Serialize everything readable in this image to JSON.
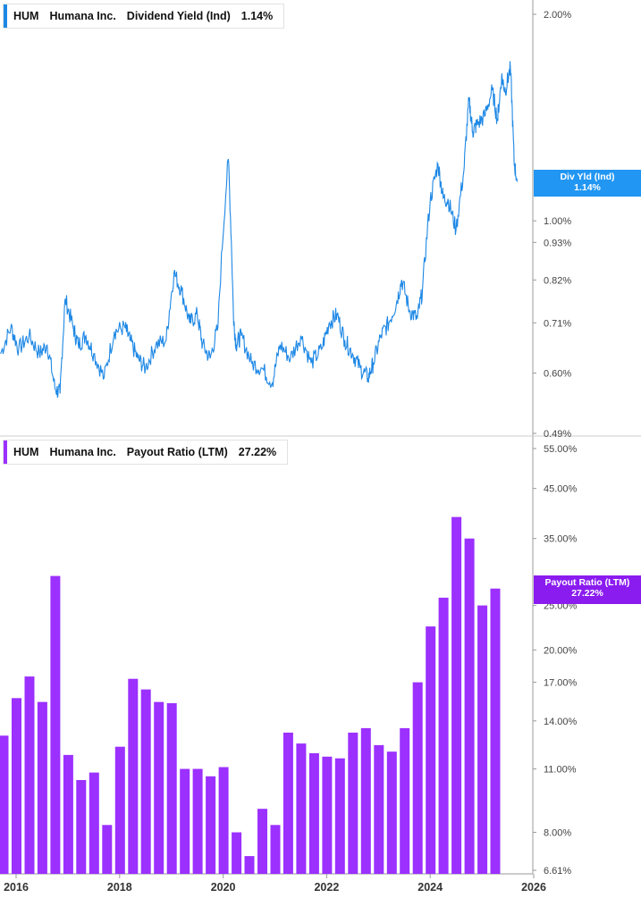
{
  "top_legend": {
    "ticker": "HUM",
    "company": "Humana Inc.",
    "metric": "Dividend Yield (Ind)",
    "value": "1.14%"
  },
  "top_flag": {
    "label": "Div Yld (Ind)",
    "value": "1.14%"
  },
  "bottom_legend": {
    "ticker": "HUM",
    "company": "Humana Inc.",
    "metric": "Payout Ratio (LTM)",
    "value": "27.22%"
  },
  "bottom_flag": {
    "label": "Payout Ratio (LTM)",
    "value": "27.22%"
  },
  "colors": {
    "line": "#1e88e5",
    "bars": "#9b30ff",
    "flag_top": "#2196f3",
    "flag_bottom": "#8a1cf0",
    "axis": "#999999"
  },
  "x_axis_labels": [
    "2016",
    "2018",
    "2020",
    "2022",
    "2024",
    "2026"
  ],
  "chart_data": [
    {
      "type": "line",
      "y_scale": "log",
      "ylim": [
        0.49,
        2.0
      ],
      "y_tick_labels": [
        "2.00%",
        "1.00%",
        "0.93%",
        "0.82%",
        "0.71%",
        "0.60%",
        "0.49%"
      ],
      "y_tick_values": [
        2.0,
        1.0,
        0.93,
        0.82,
        0.71,
        0.6,
        0.49
      ],
      "x_range": [
        2015.7,
        2026.0
      ],
      "series": [
        {
          "values_x": [
            2015.7,
            2015.9,
            2016.05,
            2016.25,
            2016.45,
            2016.6,
            2016.75,
            2016.85,
            2016.95,
            2017.1,
            2017.2,
            2017.35,
            2017.5,
            2017.7,
            2017.9,
            2018.1,
            2018.2,
            2018.35,
            2018.5,
            2018.7,
            2018.9,
            2019.05,
            2019.2,
            2019.35,
            2019.5,
            2019.6,
            2019.75,
            2019.9,
            2020.1,
            2020.2,
            2020.25,
            2020.35,
            2020.55,
            2020.75,
            2020.95,
            2021.1,
            2021.3,
            2021.5,
            2021.7,
            2021.9,
            2022.05,
            2022.2,
            2022.35,
            2022.5,
            2022.65,
            2022.8,
            2022.9,
            2023.05,
            2023.2,
            2023.35,
            2023.45,
            2023.6,
            2023.75,
            2023.85,
            2024.0,
            2024.15,
            2024.25,
            2024.35,
            2024.5,
            2024.65,
            2024.75,
            2024.82,
            2024.9,
            2025.05,
            2025.2,
            2025.3,
            2025.38,
            2025.45,
            2025.55,
            2025.62,
            2025.68
          ],
          "values": [
            0.64,
            0.7,
            0.65,
            0.68,
            0.64,
            0.66,
            0.57,
            0.56,
            0.77,
            0.7,
            0.66,
            0.68,
            0.64,
            0.59,
            0.69,
            0.7,
            0.67,
            0.63,
            0.61,
            0.66,
            0.67,
            0.84,
            0.79,
            0.71,
            0.73,
            0.66,
            0.63,
            0.7,
            1.23,
            0.72,
            0.66,
            0.68,
            0.62,
            0.61,
            0.58,
            0.66,
            0.63,
            0.68,
            0.62,
            0.65,
            0.71,
            0.73,
            0.67,
            0.64,
            0.61,
            0.59,
            0.62,
            0.68,
            0.71,
            0.76,
            0.82,
            0.74,
            0.72,
            0.79,
            1.07,
            1.21,
            1.08,
            1.07,
            0.97,
            1.18,
            1.5,
            1.35,
            1.38,
            1.42,
            1.55,
            1.4,
            1.62,
            1.55,
            1.67,
            1.22,
            1.14
          ]
        }
      ]
    },
    {
      "type": "bar",
      "y_scale": "log",
      "ylim": [
        6.61,
        55.0
      ],
      "y_tick_labels": [
        "55.00%",
        "45.00%",
        "35.00%",
        "25.00%",
        "20.00%",
        "17.00%",
        "14.00%",
        "11.00%",
        "8.00%",
        "6.61%"
      ],
      "y_tick_values": [
        55,
        45,
        35,
        25,
        20,
        17,
        14,
        11,
        8,
        6.61
      ],
      "x": [
        2015.75,
        2016.0,
        2016.25,
        2016.5,
        2016.75,
        2017.0,
        2017.25,
        2017.5,
        2017.75,
        2018.0,
        2018.25,
        2018.5,
        2018.75,
        2019.0,
        2019.25,
        2019.5,
        2019.75,
        2020.0,
        2020.25,
        2020.5,
        2020.75,
        2021.0,
        2021.25,
        2021.5,
        2021.75,
        2022.0,
        2022.25,
        2022.5,
        2022.75,
        2023.0,
        2023.25,
        2023.5,
        2023.75,
        2024.0,
        2024.25,
        2024.5,
        2024.75,
        2025.0,
        2025.25,
        2025.5
      ],
      "values": [
        12.5,
        13.0,
        15.7,
        17.5,
        15.4,
        29.0,
        11.8,
        10.4,
        10.8,
        8.3,
        12.3,
        17.3,
        16.4,
        15.4,
        15.3,
        11.0,
        11.0,
        10.6,
        11.1,
        8.0,
        7.1,
        9.0,
        8.3,
        13.2,
        12.5,
        11.9,
        11.7,
        11.6,
        13.2,
        13.5,
        12.4,
        12.0,
        13.5,
        17.0,
        22.5,
        26.0,
        39.0,
        35.0,
        25.0,
        27.22
      ]
    }
  ]
}
